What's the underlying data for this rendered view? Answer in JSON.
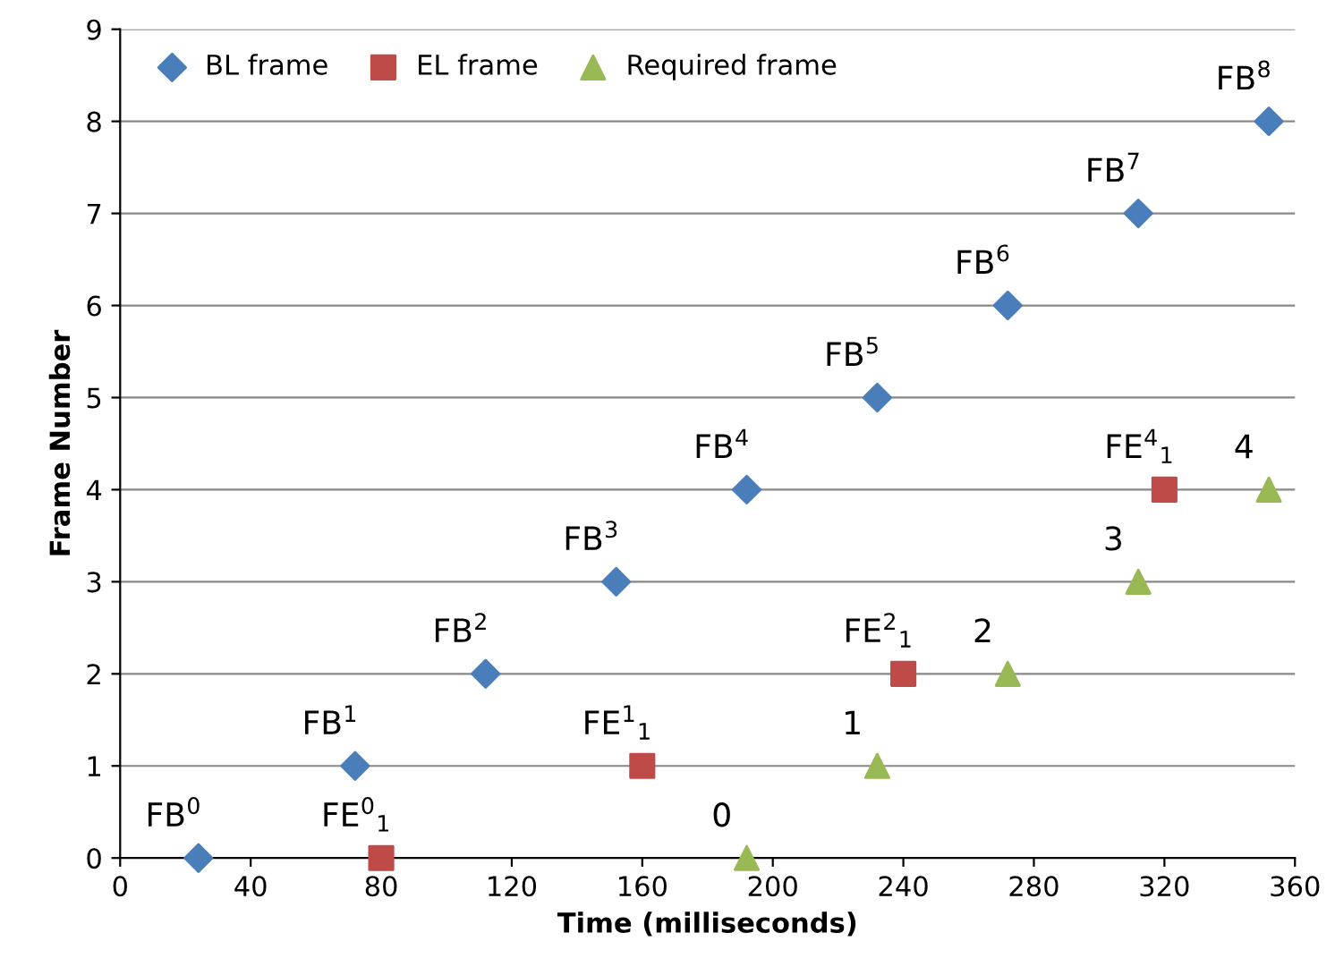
{
  "chart_data": {
    "type": "scatter",
    "xlabel": "Time (milliseconds)",
    "ylabel": "Frame Number",
    "xlim": [
      0,
      360
    ],
    "xticks": [
      0,
      40,
      80,
      120,
      160,
      200,
      240,
      280,
      320,
      360
    ],
    "ylim": [
      0,
      9
    ],
    "yticks": [
      0,
      1,
      2,
      3,
      4,
      5,
      6,
      7,
      8,
      9
    ],
    "grid": "y",
    "legend": "top left",
    "series": [
      {
        "name": "BL frame",
        "color": "#4a7ebb",
        "marker": "diamond",
        "x": [
          24,
          72,
          112,
          152,
          192,
          232,
          272,
          312,
          352
        ],
        "values": [
          0,
          1,
          2,
          3,
          4,
          5,
          6,
          7,
          8
        ]
      },
      {
        "name": "EL frame",
        "color": "#be4b48",
        "marker": "square",
        "x": [
          80,
          160,
          240,
          320
        ],
        "values": [
          0,
          1,
          2,
          4
        ]
      },
      {
        "name": "Required frame",
        "color": "#98b954",
        "marker": "triangle",
        "x": [
          192,
          232,
          272,
          312,
          352
        ],
        "values": [
          0,
          1,
          2,
          3,
          4
        ]
      }
    ],
    "annotations": [
      {
        "text": "FB$^{0}$",
        "x": 24,
        "y": 0
      },
      {
        "text": "FB$^{1}$",
        "x": 72,
        "y": 1
      },
      {
        "text": "FB$^{2}$",
        "x": 112,
        "y": 2
      },
      {
        "text": "FB$^{3}$",
        "x": 152,
        "y": 3
      },
      {
        "text": "FB$^{4}$",
        "x": 192,
        "y": 4
      },
      {
        "text": "FB$^{5}$",
        "x": 232,
        "y": 5
      },
      {
        "text": "FB$^{6}$",
        "x": 272,
        "y": 6
      },
      {
        "text": "FB$^{7}$",
        "x": 312,
        "y": 7
      },
      {
        "text": "FB$^{8}$",
        "x": 352,
        "y": 8
      },
      {
        "text": "FE$^{0}$$_{1}$",
        "x": 80,
        "y": 0
      },
      {
        "text": "FE$^{1}$$_{1}$",
        "x": 160,
        "y": 1
      },
      {
        "text": "FE$^{2}$$_{1}$",
        "x": 240,
        "y": 2
      },
      {
        "text": "FE$^{4}$$_{1}$",
        "x": 320,
        "y": 4
      },
      {
        "text": "0",
        "x": 192,
        "y": 0
      },
      {
        "text": "1",
        "x": 232,
        "y": 1
      },
      {
        "text": "2",
        "x": 272,
        "y": 2
      },
      {
        "text": "3",
        "x": 312,
        "y": 3
      },
      {
        "text": "4",
        "x": 352,
        "y": 4
      }
    ]
  }
}
